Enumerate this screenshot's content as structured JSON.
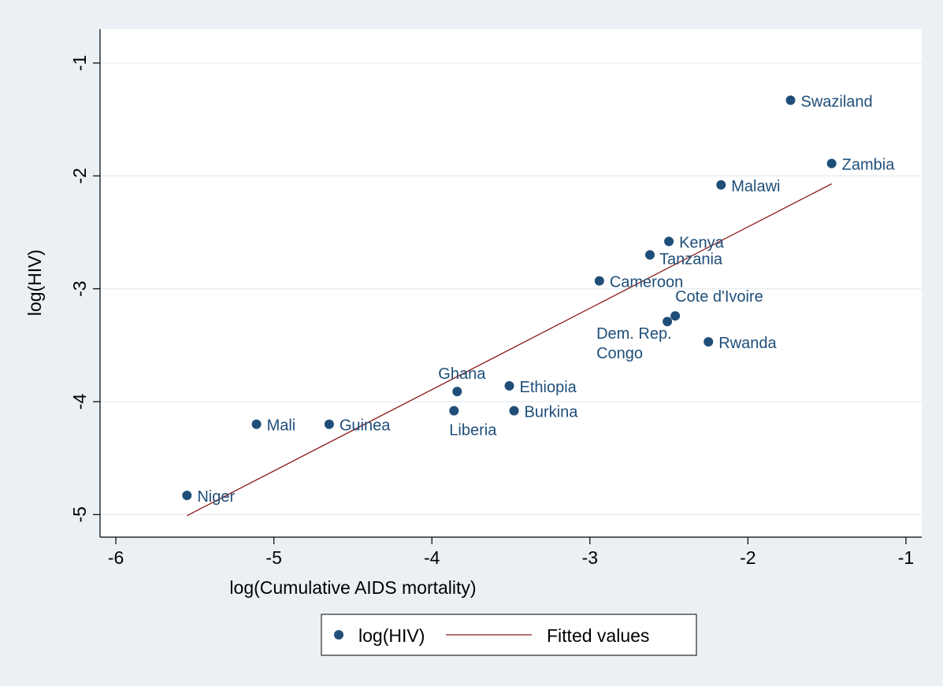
{
  "chart_data": {
    "type": "scatter",
    "xlabel": "log(Cumulative AIDS mortality)",
    "ylabel": "log(HIV)",
    "xlim": [
      -6.1,
      -0.9
    ],
    "ylim": [
      -5.2,
      -0.7
    ],
    "xticks": [
      -6,
      -5,
      -4,
      -3,
      -2,
      -1
    ],
    "yticks": [
      -5,
      -4,
      -3,
      -2,
      -1
    ],
    "grid": true,
    "legend_position": "bottom",
    "series": [
      {
        "name": "log(HIV)",
        "kind": "scatter",
        "color": "#1f4e79",
        "points": [
          {
            "label": "Swaziland",
            "x": -1.73,
            "y": -1.33
          },
          {
            "label": "Zambia",
            "x": -1.47,
            "y": -1.89
          },
          {
            "label": "Malawi",
            "x": -2.17,
            "y": -2.08
          },
          {
            "label": "Kenya",
            "x": -2.5,
            "y": -2.58
          },
          {
            "label": "Tanzania",
            "x": -2.62,
            "y": -2.7
          },
          {
            "label": "Cameroon",
            "x": -2.94,
            "y": -2.93
          },
          {
            "label": "Cote d'Ivoire",
            "x": -2.46,
            "y": -3.24
          },
          {
            "label": "Dem. Rep. Congo",
            "x": -2.51,
            "y": -3.29
          },
          {
            "label": "Rwanda",
            "x": -2.25,
            "y": -3.47
          },
          {
            "label": "Ghana",
            "x": -3.84,
            "y": -3.91
          },
          {
            "label": "Ethiopia",
            "x": -3.51,
            "y": -3.86
          },
          {
            "label": "Liberia",
            "x": -3.86,
            "y": -4.08
          },
          {
            "label": "Burkina",
            "x": -3.48,
            "y": -4.08
          },
          {
            "label": "Mali",
            "x": -5.11,
            "y": -4.2
          },
          {
            "label": "Guinea",
            "x": -4.65,
            "y": -4.2
          },
          {
            "label": "Niger",
            "x": -5.55,
            "y": -4.83
          }
        ]
      },
      {
        "name": "Fitted values",
        "kind": "line",
        "color": "#8b1a1a",
        "points": [
          {
            "x": -5.55,
            "y": -5.01
          },
          {
            "x": -1.47,
            "y": -2.07
          }
        ]
      }
    ]
  }
}
